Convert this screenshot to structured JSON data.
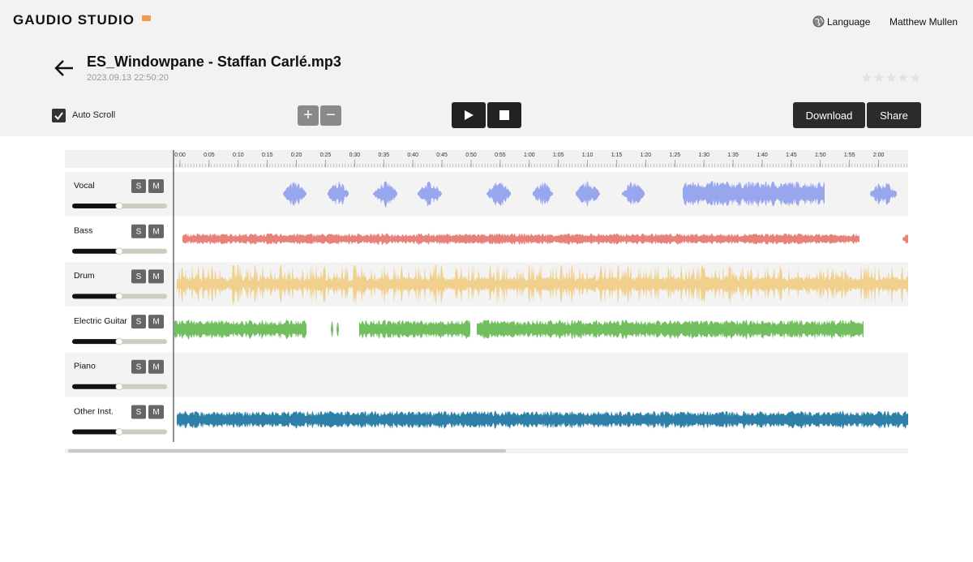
{
  "header": {
    "logo": "GAUDIO STUDIO",
    "language": "Language",
    "user": "Matthew Mullen"
  },
  "file": {
    "title": "ES_Windowpane - Staffan Carlé.mp3",
    "date": "2023.09.13 22:50:20"
  },
  "toolbar": {
    "auto_scroll": "Auto Scroll",
    "zoom_in": "+",
    "zoom_out": "−",
    "download": "Download",
    "share": "Share"
  },
  "timeline": {
    "labels": [
      "0:00",
      "0:05",
      "0:10",
      "0:15",
      "0:20",
      "0:25",
      "0:30",
      "0:35",
      "0:40",
      "0:45",
      "0:50",
      "0:55",
      "1:00",
      "1:05",
      "1:10",
      "1:15",
      "1:20",
      "1:25",
      "1:30",
      "1:35",
      "1:40",
      "1:45",
      "1:50",
      "1:55",
      "2:00"
    ]
  },
  "tracks": [
    {
      "name": "Vocal",
      "solo": "S",
      "mute": "M"
    },
    {
      "name": "Bass",
      "solo": "S",
      "mute": "M"
    },
    {
      "name": "Drum",
      "solo": "S",
      "mute": "M"
    },
    {
      "name": "Electric Guitar",
      "solo": "S",
      "mute": "M"
    },
    {
      "name": "Piano",
      "solo": "S",
      "mute": "M"
    },
    {
      "name": "Other Inst.",
      "solo": "S",
      "mute": "M"
    }
  ]
}
